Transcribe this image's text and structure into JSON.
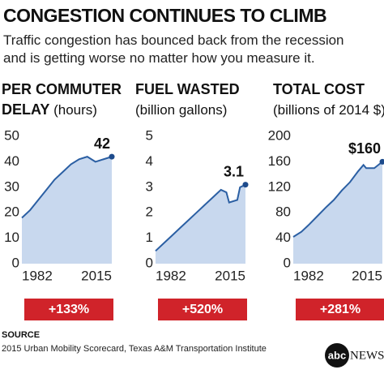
{
  "header": {
    "title": "CONGESTION CONTINUES TO CLIMB",
    "subtitle": "Traffic congestion has bounced back from the recession and is getting worse no matter how you measure it."
  },
  "chart_data": [
    {
      "type": "area",
      "title": "PER COMMUTER DELAY",
      "unit": "(hours)",
      "color": "#2b5fa3",
      "fill": "#c8d8ee",
      "x": [
        1982,
        1985,
        1988,
        1991,
        1994,
        1997,
        2000,
        2003,
        2006,
        2009,
        2012,
        2015
      ],
      "values": [
        18,
        21,
        25,
        29,
        33,
        36,
        39,
        41,
        42,
        40,
        41,
        42
      ],
      "xlim": [
        1982,
        2015
      ],
      "xticks": [
        1982,
        2015
      ],
      "ylim": [
        0,
        50
      ],
      "yticks": [
        0,
        10,
        20,
        30,
        40,
        50
      ],
      "annotation": "42",
      "change": "+133%"
    },
    {
      "type": "area",
      "title": "FUEL WASTED",
      "unit": "(billion gallons)",
      "color": "#2b5fa3",
      "fill": "#c8d8ee",
      "x": [
        1982,
        1985,
        1988,
        1991,
        1994,
        1997,
        2000,
        2003,
        2006,
        2008,
        2009,
        2012,
        2013,
        2015
      ],
      "values": [
        0.5,
        0.8,
        1.1,
        1.4,
        1.7,
        2.0,
        2.3,
        2.6,
        2.9,
        2.8,
        2.4,
        2.5,
        3.0,
        3.1
      ],
      "xlim": [
        1982,
        2015
      ],
      "xticks": [
        1982,
        2015
      ],
      "ylim": [
        0,
        5
      ],
      "yticks": [
        0,
        1,
        2,
        3,
        4,
        5
      ],
      "annotation": "3.1",
      "change": "+520%"
    },
    {
      "type": "area",
      "title": "TOTAL COST",
      "unit": "(billions of 2014 $)",
      "color": "#2b5fa3",
      "fill": "#c8d8ee",
      "x": [
        1982,
        1985,
        1988,
        1991,
        1994,
        1997,
        2000,
        2003,
        2006,
        2008,
        2009,
        2012,
        2015
      ],
      "values": [
        42,
        50,
        62,
        75,
        88,
        100,
        115,
        128,
        145,
        155,
        150,
        150,
        160
      ],
      "xlim": [
        1982,
        2015
      ],
      "xticks": [
        1982,
        2015
      ],
      "ylim": [
        0,
        200
      ],
      "yticks": [
        0,
        40,
        80,
        120,
        160,
        200
      ],
      "annotation": "$160",
      "change": "+281%"
    }
  ],
  "footer": {
    "source_label": "SOURCE",
    "source": "2015 Urban Mobility Scorecard, Texas A&M Transportation Institute",
    "logo_mark": "abc",
    "logo_text": "NEWS"
  }
}
